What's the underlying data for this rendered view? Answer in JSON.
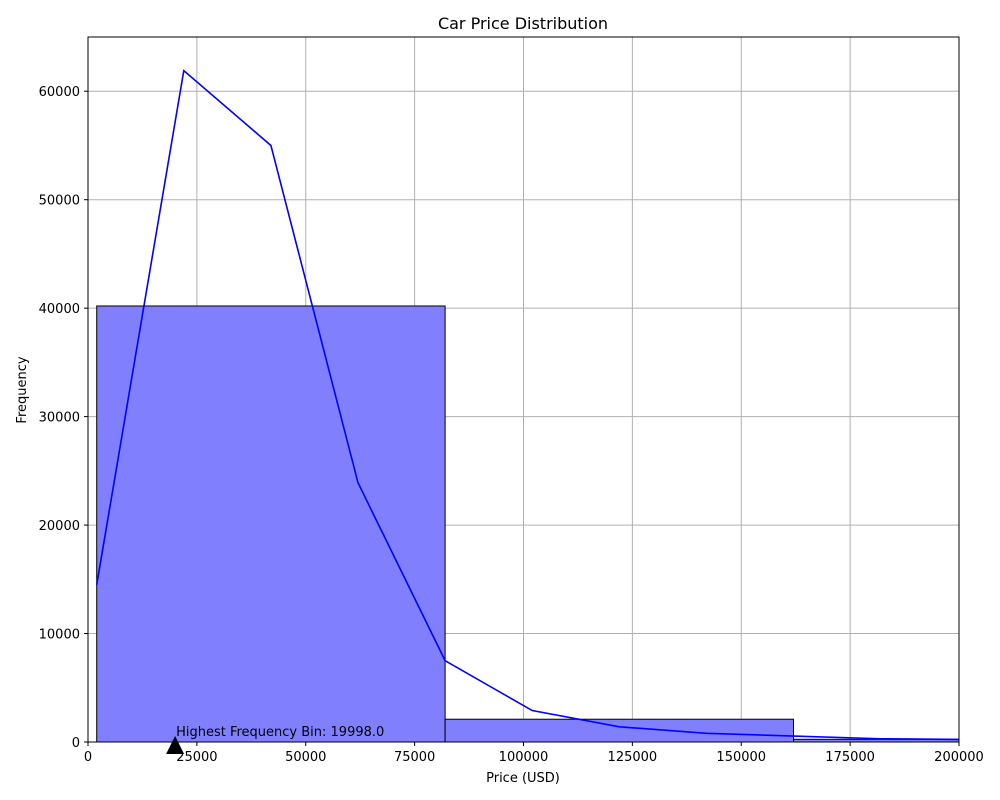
{
  "chart_data": {
    "type": "bar",
    "title": "Car Price Distribution",
    "xlabel": "Price (USD)",
    "ylabel": "Frequency",
    "xlim": [
      0,
      200000
    ],
    "ylim": [
      0,
      65000
    ],
    "xticks": [
      0,
      25000,
      50000,
      75000,
      100000,
      125000,
      150000,
      175000,
      200000
    ],
    "yticks": [
      0,
      10000,
      20000,
      30000,
      40000,
      50000,
      60000
    ],
    "grid": true,
    "bins": [
      {
        "start": 2000,
        "end": 82000,
        "count": 40200
      },
      {
        "start": 82000,
        "end": 162000,
        "count": 2100
      },
      {
        "start": 162000,
        "end": 242000,
        "count": 250
      }
    ],
    "bar_color": "#8080ff",
    "bar_edge_color": "#000000",
    "kde_line": {
      "color": "#0000ff",
      "x": [
        2000,
        22000,
        42000,
        62000,
        82000,
        102000,
        122000,
        142000,
        162000,
        182000,
        202000
      ],
      "y": [
        14500,
        61900,
        55000,
        23900,
        7500,
        2900,
        1400,
        800,
        550,
        300,
        230
      ]
    },
    "annotation": {
      "text": "Highest Frequency Bin: 19998.0",
      "x": 19998,
      "y": 0,
      "marker": "triangle-up"
    }
  }
}
